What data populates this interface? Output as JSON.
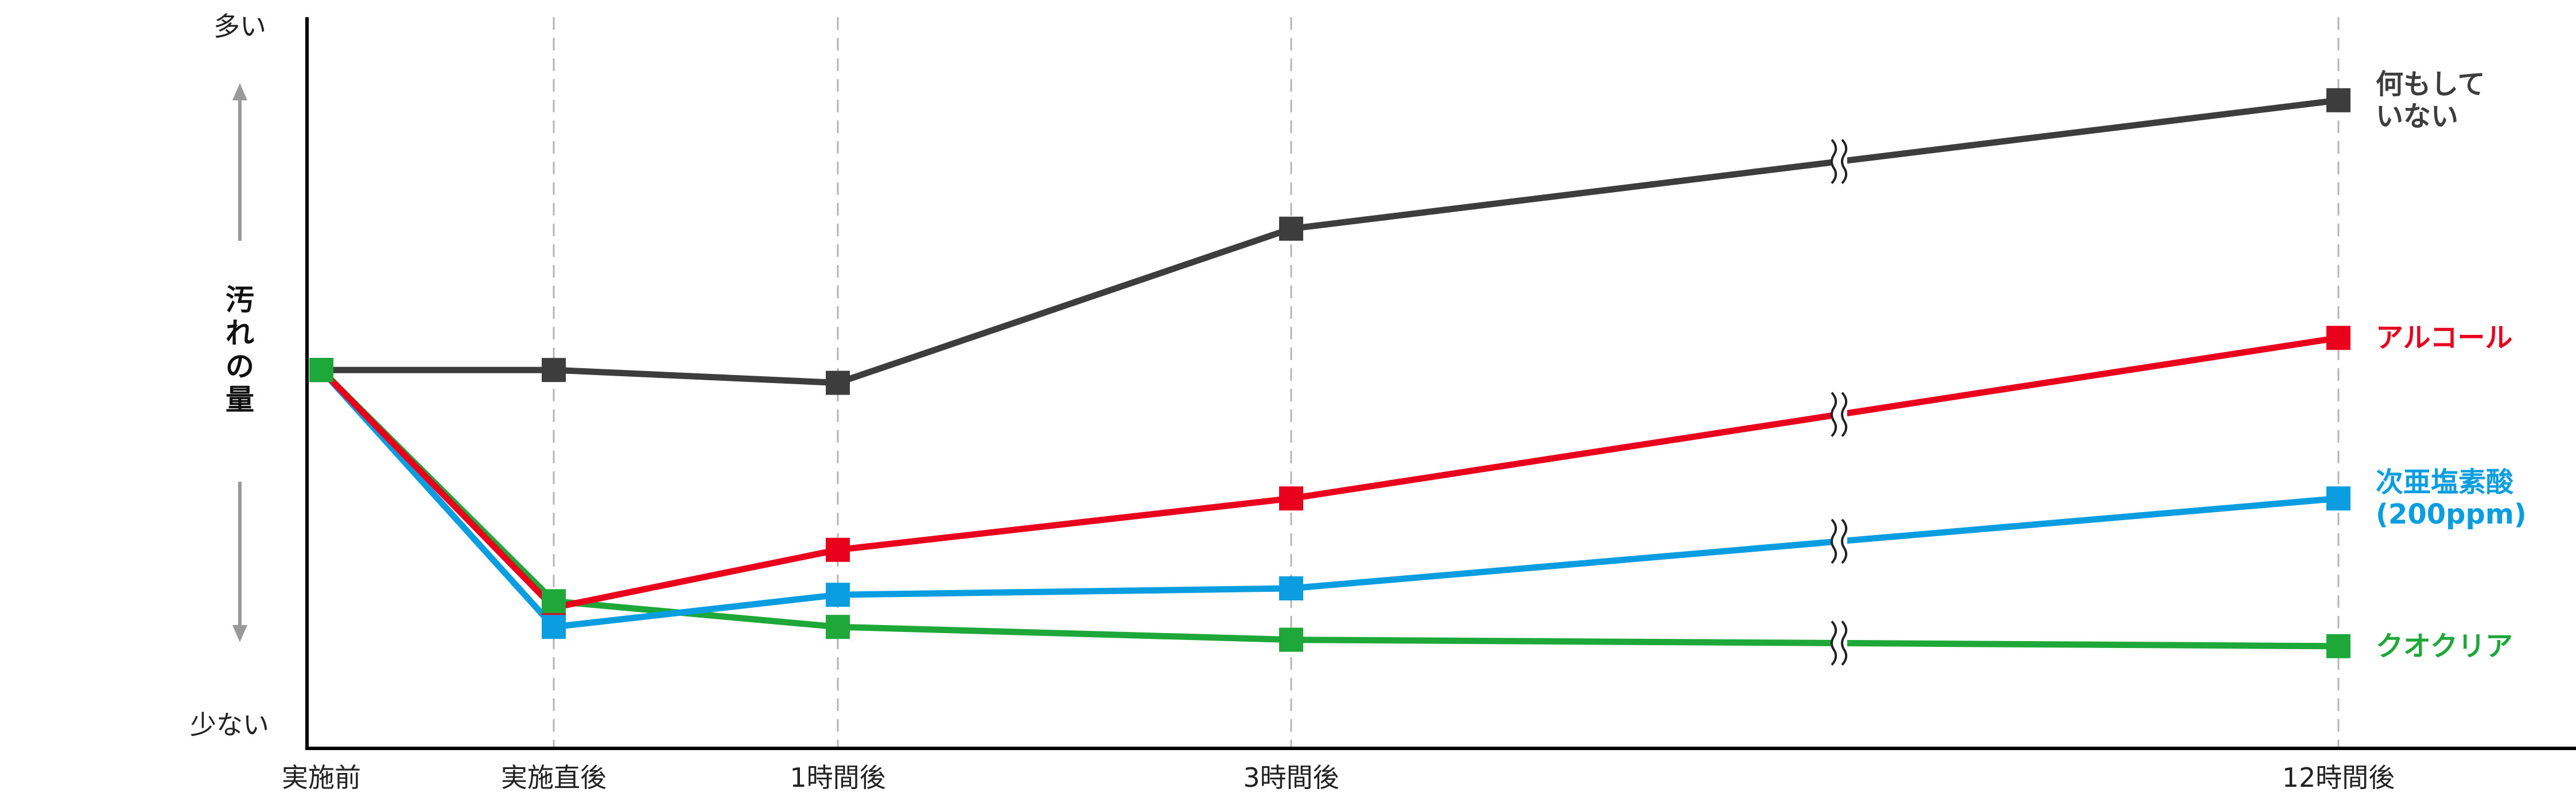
{
  "chart_data": {
    "type": "line",
    "x": [
      "実施前",
      "実施直後",
      "1時間後",
      "3時間後",
      "12時間後"
    ],
    "y_axis": {
      "title": "汚れの量",
      "top_label": "多い",
      "bottom_label": "少ない",
      "ylim": [
        0,
        100
      ],
      "tick_values": false
    },
    "axis_break_between": [
      "3時間後",
      "12時間後"
    ],
    "grid": "vertical dashed lines at each x category",
    "legend": "series labels at the right end of each line",
    "series": [
      {
        "name": "何もしていない",
        "name_lines": [
          "何もして",
          "いない"
        ],
        "color": "#3d3d3d",
        "values": [
          54,
          54,
          52,
          76,
          96
        ]
      },
      {
        "name": "アルコール",
        "name_lines": [
          "アルコール"
        ],
        "color": "#e8001c",
        "values": [
          54,
          17,
          26,
          34,
          59
        ]
      },
      {
        "name": "次亜塩素酸(200ppm)",
        "name_lines": [
          "次亜塩素酸",
          "(200ppm)"
        ],
        "color": "#0a9de0",
        "values": [
          54,
          14,
          19,
          20,
          34
        ]
      },
      {
        "name": "クオクリア",
        "name_lines": [
          "クオクリア"
        ],
        "color": "#1ea83a",
        "values": [
          54,
          18,
          14,
          12,
          11
        ]
      }
    ]
  }
}
